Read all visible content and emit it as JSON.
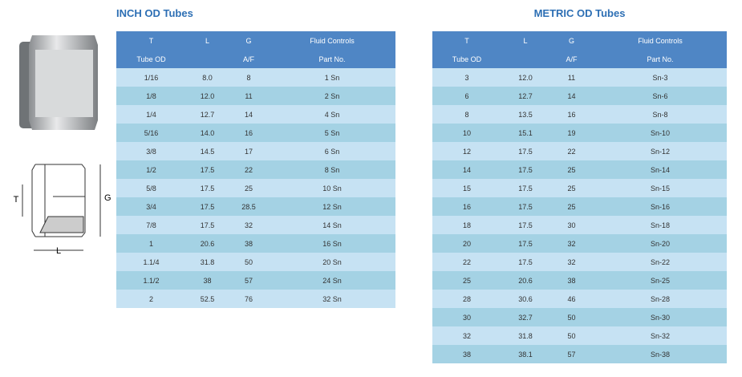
{
  "diagram": {
    "labels": {
      "t": "T",
      "l": "L",
      "g": "G"
    }
  },
  "inch_table": {
    "title": "INCH OD Tubes",
    "columns": [
      {
        "symbol": "T",
        "label": "Tube OD"
      },
      {
        "symbol": "L"
      },
      {
        "symbol": "G",
        "label": "A/F"
      },
      {
        "symbol": "Fluid Controls",
        "label": "Part No."
      }
    ],
    "rows": [
      [
        "1/16",
        "8.0",
        "8",
        "1 Sn"
      ],
      [
        "1/8",
        "12.0",
        "11",
        "2 Sn"
      ],
      [
        "1/4",
        "12.7",
        "14",
        "4 Sn"
      ],
      [
        "5/16",
        "14.0",
        "16",
        "5 Sn"
      ],
      [
        "3/8",
        "14.5",
        "17",
        "6 Sn"
      ],
      [
        "1/2",
        "17.5",
        "22",
        "8 Sn"
      ],
      [
        "5/8",
        "17.5",
        "25",
        "10 Sn"
      ],
      [
        "3/4",
        "17.5",
        "28.5",
        "12 Sn"
      ],
      [
        "7/8",
        "17.5",
        "32",
        "14 Sn"
      ],
      [
        "1",
        "20.6",
        "38",
        "16 Sn"
      ],
      [
        "1.1/4",
        "31.8",
        "50",
        "20 Sn"
      ],
      [
        "1.1/2",
        "38",
        "57",
        "24 Sn"
      ],
      [
        "2",
        "52.5",
        "76",
        "32 Sn"
      ]
    ]
  },
  "metric_table": {
    "title": "METRIC OD Tubes",
    "columns": [
      {
        "symbol": "T",
        "label": "Tube OD"
      },
      {
        "symbol": "L"
      },
      {
        "symbol": "G",
        "label": "A/F"
      },
      {
        "symbol": "Fluid Controls",
        "label": "Part No."
      }
    ],
    "rows": [
      [
        "3",
        "12.0",
        "11",
        "Sn-3"
      ],
      [
        "6",
        "12.7",
        "14",
        "Sn-6"
      ],
      [
        "8",
        "13.5",
        "16",
        "Sn-8"
      ],
      [
        "10",
        "15.1",
        "19",
        "Sn-10"
      ],
      [
        "12",
        "17.5",
        "22",
        "Sn-12"
      ],
      [
        "14",
        "17.5",
        "25",
        "Sn-14"
      ],
      [
        "15",
        "17.5",
        "25",
        "Sn-15"
      ],
      [
        "16",
        "17.5",
        "25",
        "Sn-16"
      ],
      [
        "18",
        "17.5",
        "30",
        "Sn-18"
      ],
      [
        "20",
        "17.5",
        "32",
        "Sn-20"
      ],
      [
        "22",
        "17.5",
        "32",
        "Sn-22"
      ],
      [
        "25",
        "20.6",
        "38",
        "Sn-25"
      ],
      [
        "28",
        "30.6",
        "46",
        "Sn-28"
      ],
      [
        "30",
        "32.7",
        "50",
        "Sn-30"
      ],
      [
        "32",
        "31.8",
        "50",
        "Sn-32"
      ],
      [
        "38",
        "38.1",
        "57",
        "Sn-38"
      ]
    ]
  }
}
